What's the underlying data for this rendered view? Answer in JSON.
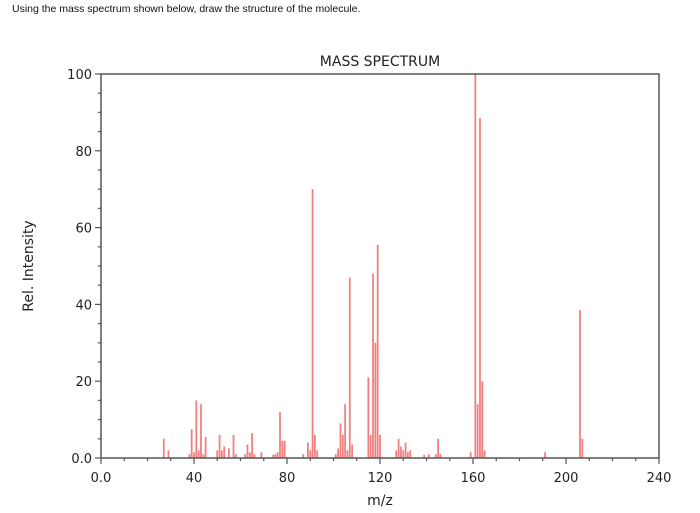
{
  "question": "Using the mass spectrum shown below, draw the structure of the molecule.",
  "chart_data": {
    "type": "bar",
    "title": "MASS SPECTRUM",
    "xlabel": "m/z",
    "ylabel": "Rel. Intensity",
    "xlim": [
      0,
      240
    ],
    "ylim": [
      0,
      100
    ],
    "xticks": [
      0,
      40,
      80,
      120,
      160,
      200,
      240
    ],
    "xtick_labels": [
      "0.0",
      "40",
      "80",
      "120",
      "160",
      "200",
      "240"
    ],
    "yticks": [
      0,
      20,
      40,
      60,
      80,
      100
    ],
    "ytick_labels": [
      "0.0",
      "20",
      "40",
      "60",
      "80",
      "100"
    ],
    "grid": false,
    "bar_color": "#f08080",
    "peaks": [
      {
        "mz": 27,
        "intensity": 5
      },
      {
        "mz": 29,
        "intensity": 2
      },
      {
        "mz": 38,
        "intensity": 1
      },
      {
        "mz": 39,
        "intensity": 7.5
      },
      {
        "mz": 40,
        "intensity": 1.5
      },
      {
        "mz": 41,
        "intensity": 15
      },
      {
        "mz": 42,
        "intensity": 2
      },
      {
        "mz": 43,
        "intensity": 14
      },
      {
        "mz": 44,
        "intensity": 1
      },
      {
        "mz": 45,
        "intensity": 5.5
      },
      {
        "mz": 50,
        "intensity": 2
      },
      {
        "mz": 51,
        "intensity": 6
      },
      {
        "mz": 52,
        "intensity": 2
      },
      {
        "mz": 53,
        "intensity": 3
      },
      {
        "mz": 55,
        "intensity": 2.5
      },
      {
        "mz": 57,
        "intensity": 6
      },
      {
        "mz": 58,
        "intensity": 1
      },
      {
        "mz": 62,
        "intensity": 1
      },
      {
        "mz": 63,
        "intensity": 3.5
      },
      {
        "mz": 64,
        "intensity": 1.5
      },
      {
        "mz": 65,
        "intensity": 6.5
      },
      {
        "mz": 66,
        "intensity": 1
      },
      {
        "mz": 69,
        "intensity": 1.5
      },
      {
        "mz": 74,
        "intensity": 0.8
      },
      {
        "mz": 75,
        "intensity": 1
      },
      {
        "mz": 76,
        "intensity": 1.5
      },
      {
        "mz": 77,
        "intensity": 12
      },
      {
        "mz": 78,
        "intensity": 4.5
      },
      {
        "mz": 79,
        "intensity": 4.5
      },
      {
        "mz": 87,
        "intensity": 1
      },
      {
        "mz": 89,
        "intensity": 4
      },
      {
        "mz": 90,
        "intensity": 2
      },
      {
        "mz": 91,
        "intensity": 70
      },
      {
        "mz": 92,
        "intensity": 6
      },
      {
        "mz": 93,
        "intensity": 2
      },
      {
        "mz": 101,
        "intensity": 1
      },
      {
        "mz": 102,
        "intensity": 2.5
      },
      {
        "mz": 103,
        "intensity": 9
      },
      {
        "mz": 104,
        "intensity": 6
      },
      {
        "mz": 105,
        "intensity": 14
      },
      {
        "mz": 106,
        "intensity": 2
      },
      {
        "mz": 107,
        "intensity": 47
      },
      {
        "mz": 108,
        "intensity": 3.5
      },
      {
        "mz": 115,
        "intensity": 21
      },
      {
        "mz": 116,
        "intensity": 6
      },
      {
        "mz": 117,
        "intensity": 48
      },
      {
        "mz": 118,
        "intensity": 30
      },
      {
        "mz": 119,
        "intensity": 55.5
      },
      {
        "mz": 120,
        "intensity": 6
      },
      {
        "mz": 127,
        "intensity": 2
      },
      {
        "mz": 128,
        "intensity": 5
      },
      {
        "mz": 129,
        "intensity": 3
      },
      {
        "mz": 130,
        "intensity": 2
      },
      {
        "mz": 131,
        "intensity": 4
      },
      {
        "mz": 132,
        "intensity": 1.5
      },
      {
        "mz": 133,
        "intensity": 2
      },
      {
        "mz": 139,
        "intensity": 0.8
      },
      {
        "mz": 141,
        "intensity": 1
      },
      {
        "mz": 144,
        "intensity": 1
      },
      {
        "mz": 145,
        "intensity": 5
      },
      {
        "mz": 146,
        "intensity": 1
      },
      {
        "mz": 159,
        "intensity": 1.5
      },
      {
        "mz": 161,
        "intensity": 100
      },
      {
        "mz": 162,
        "intensity": 14
      },
      {
        "mz": 163,
        "intensity": 88.5
      },
      {
        "mz": 164,
        "intensity": 20
      },
      {
        "mz": 165,
        "intensity": 2
      },
      {
        "mz": 191,
        "intensity": 1.5
      },
      {
        "mz": 206,
        "intensity": 38.5
      },
      {
        "mz": 207,
        "intensity": 5
      }
    ]
  }
}
